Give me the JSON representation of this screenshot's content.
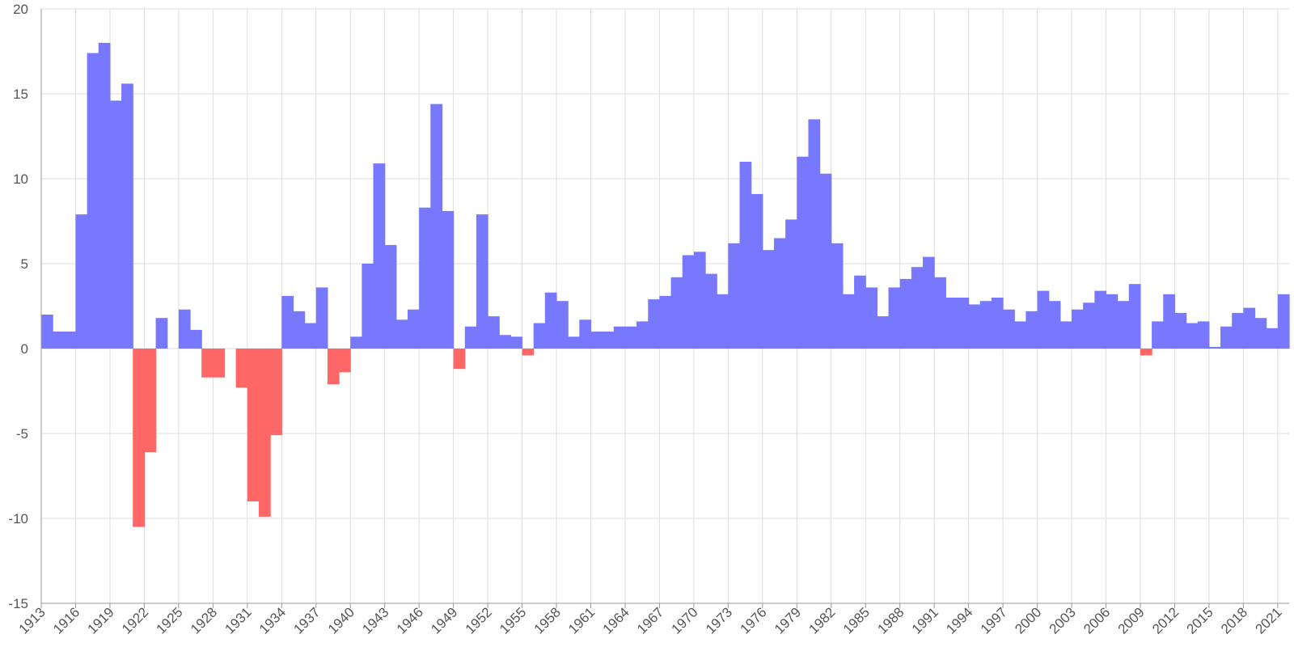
{
  "chart_data": {
    "type": "bar",
    "title": "",
    "xlabel": "",
    "ylabel": "",
    "ylim": [
      -15,
      20
    ],
    "y_ticks": [
      20,
      15,
      10,
      5,
      0,
      -5,
      -10,
      -15
    ],
    "x_tick_labels": [
      "1913",
      "1916",
      "1919",
      "1922",
      "1925",
      "1928",
      "1931",
      "1934",
      "1937",
      "1940",
      "1943",
      "1946",
      "1949",
      "1952",
      "1955",
      "1958",
      "1961",
      "1964",
      "1967",
      "1970",
      "1973",
      "1976",
      "1979",
      "1982",
      "1985",
      "1988",
      "1991",
      "1994",
      "1997",
      "2000",
      "2003",
      "2006",
      "2009",
      "2012",
      "2015",
      "2018",
      "2021"
    ],
    "grid": true,
    "legend": "none",
    "positive_color": "#7878ff",
    "negative_color": "#ff6666",
    "categories": [
      "1913",
      "1914",
      "1915",
      "1916",
      "1917",
      "1918",
      "1919",
      "1920",
      "1921",
      "1922",
      "1923",
      "1924",
      "1925",
      "1926",
      "1927",
      "1928",
      "1929",
      "1930",
      "1931",
      "1932",
      "1933",
      "1934",
      "1935",
      "1936",
      "1937",
      "1938",
      "1939",
      "1940",
      "1941",
      "1942",
      "1943",
      "1944",
      "1945",
      "1946",
      "1947",
      "1948",
      "1949",
      "1950",
      "1951",
      "1952",
      "1953",
      "1954",
      "1955",
      "1956",
      "1957",
      "1958",
      "1959",
      "1960",
      "1961",
      "1962",
      "1963",
      "1964",
      "1965",
      "1966",
      "1967",
      "1968",
      "1969",
      "1970",
      "1971",
      "1972",
      "1973",
      "1974",
      "1975",
      "1976",
      "1977",
      "1978",
      "1979",
      "1980",
      "1981",
      "1982",
      "1983",
      "1984",
      "1985",
      "1986",
      "1987",
      "1988",
      "1989",
      "1990",
      "1991",
      "1992",
      "1993",
      "1994",
      "1995",
      "1996",
      "1997",
      "1998",
      "1999",
      "2000",
      "2001",
      "2002",
      "2003",
      "2004",
      "2005",
      "2006",
      "2007",
      "2008",
      "2009",
      "2010",
      "2011",
      "2012",
      "2013",
      "2014",
      "2015",
      "2016",
      "2017",
      "2018",
      "2019",
      "2020",
      "2021"
    ],
    "values": [
      2.0,
      1.0,
      1.0,
      7.9,
      17.4,
      18.0,
      14.6,
      15.6,
      -10.5,
      -6.1,
      1.8,
      0.0,
      2.3,
      1.1,
      -1.7,
      -1.7,
      0.0,
      -2.3,
      -9.0,
      -9.9,
      -5.1,
      3.1,
      2.2,
      1.5,
      3.6,
      -2.1,
      -1.4,
      0.7,
      5.0,
      10.9,
      6.1,
      1.7,
      2.3,
      8.3,
      14.4,
      8.1,
      -1.2,
      1.3,
      7.9,
      1.9,
      0.8,
      0.7,
      -0.4,
      1.5,
      3.3,
      2.8,
      0.7,
      1.7,
      1.0,
      1.0,
      1.3,
      1.3,
      1.6,
      2.9,
      3.1,
      4.2,
      5.5,
      5.7,
      4.4,
      3.2,
      6.2,
      11.0,
      9.1,
      5.8,
      6.5,
      7.6,
      11.3,
      13.5,
      10.3,
      6.2,
      3.2,
      4.3,
      3.6,
      1.9,
      3.6,
      4.1,
      4.8,
      5.4,
      4.2,
      3.0,
      3.0,
      2.6,
      2.8,
      3.0,
      2.3,
      1.6,
      2.2,
      3.4,
      2.8,
      1.6,
      2.3,
      2.7,
      3.4,
      3.2,
      2.8,
      3.8,
      -0.4,
      1.6,
      3.2,
      2.1,
      1.5,
      1.6,
      0.1,
      1.3,
      2.1,
      2.4,
      1.8,
      1.2,
      3.2
    ]
  }
}
